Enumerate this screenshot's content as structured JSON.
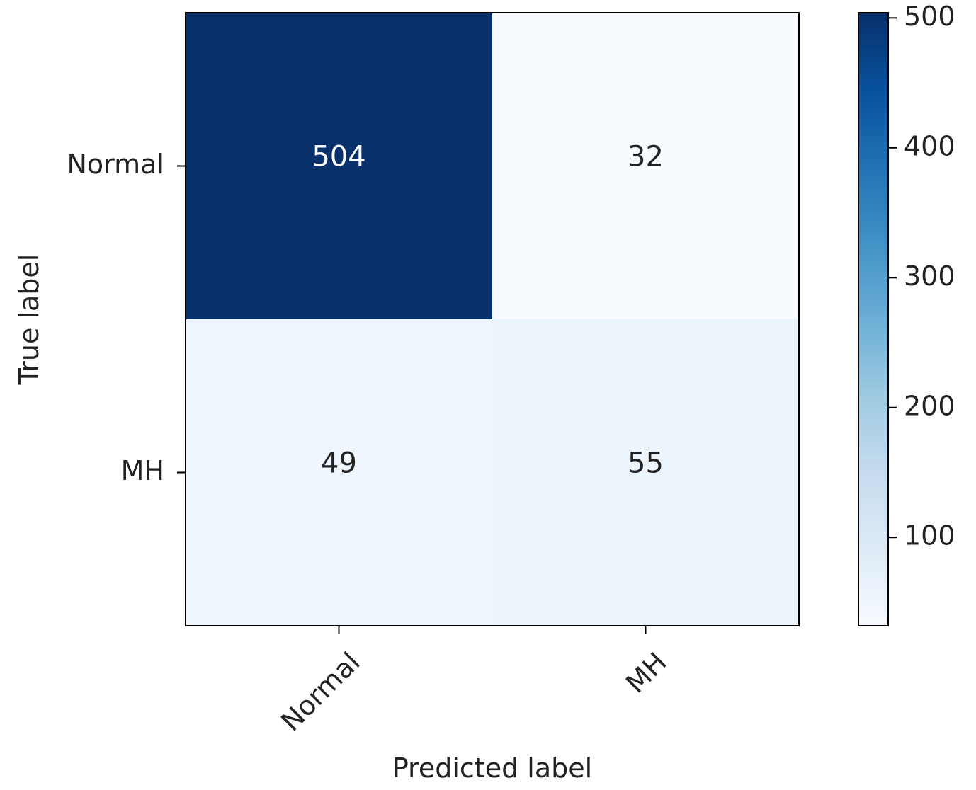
{
  "chart_data": {
    "type": "heatmap",
    "xlabel": "Predicted label",
    "ylabel": "True label",
    "x_categories": [
      "Normal",
      "MH"
    ],
    "y_categories": [
      "Normal",
      "MH"
    ],
    "matrix": [
      [
        504,
        32
      ],
      [
        49,
        55
      ]
    ],
    "colormap": "Blues",
    "color_min": "#f7fbff",
    "color_max": "#08306b",
    "colorbar": {
      "range": [
        32,
        504
      ],
      "ticks": [
        100,
        200,
        300,
        400,
        500
      ]
    }
  }
}
